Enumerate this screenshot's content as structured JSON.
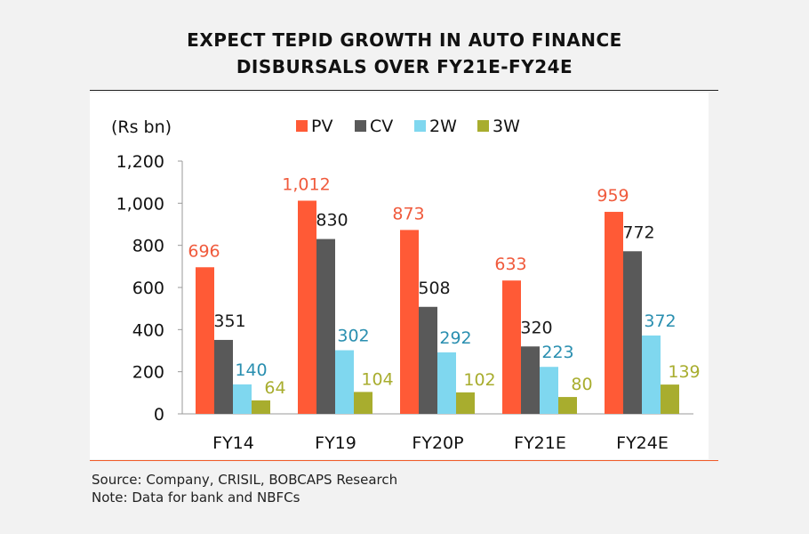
{
  "title_lines": [
    "EXPECT TEPID GROWTH IN AUTO FINANCE",
    "DISBURSALS OVER FY21E-FY24E"
  ],
  "footnotes": {
    "source": "Source: Company, CRISIL, BOBCAPS Research",
    "note": "Note: Data for bank and NBFCs"
  },
  "chart_data": {
    "type": "bar",
    "title": "EXPECT TEPID GROWTH IN AUTO FINANCE DISBURSALS OVER FY21E-FY24E",
    "unit_label": "(Rs bn)",
    "categories": [
      "FY14",
      "FY19",
      "FY20P",
      "FY21E",
      "FY24E"
    ],
    "series": [
      {
        "name": "PV",
        "color": "#ff5a36",
        "label_color": "#f05a3c",
        "values": [
          696,
          1012,
          873,
          633,
          959
        ]
      },
      {
        "name": "CV",
        "color": "#595959",
        "label_color": "#1a1a1a",
        "values": [
          351,
          830,
          508,
          320,
          772
        ]
      },
      {
        "name": "2W",
        "color": "#7fd7ef",
        "label_color": "#2a8fb0",
        "values": [
          140,
          302,
          292,
          223,
          372
        ]
      },
      {
        "name": "3W",
        "color": "#a8ad2e",
        "label_color": "#a8ad2e",
        "values": [
          64,
          104,
          102,
          80,
          139
        ]
      }
    ],
    "ylim": [
      0,
      1200
    ],
    "yticks": [
      0,
      200,
      400,
      600,
      800,
      1000,
      1200
    ],
    "ytick_labels": [
      "0",
      "200",
      "400",
      "600",
      "800",
      "1,000",
      "1,200"
    ],
    "data_labels": [
      [
        "696",
        "1,012",
        "873",
        "633",
        "959"
      ],
      [
        "351",
        "830",
        "508",
        "320",
        "772"
      ],
      [
        "140",
        "302",
        "292",
        "223",
        "372"
      ],
      [
        "64",
        "104",
        "102",
        "80",
        "139"
      ]
    ],
    "grid": false,
    "legend_position": "top"
  }
}
